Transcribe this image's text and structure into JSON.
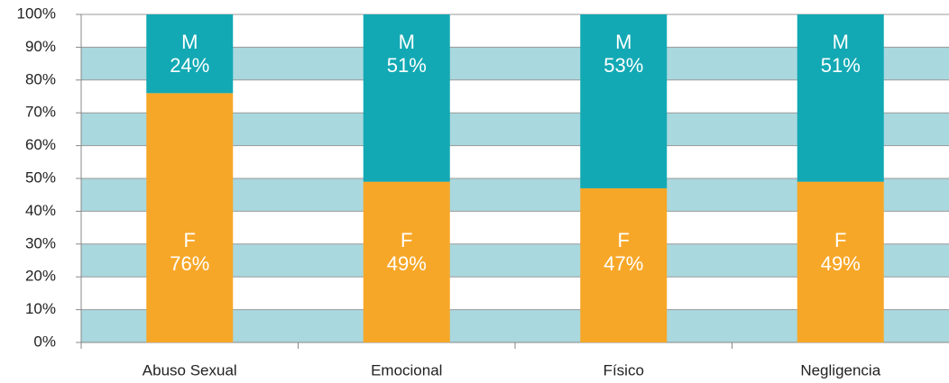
{
  "chart_data": {
    "type": "stacked_bar",
    "categories": [
      "Abuso Sexual",
      "Emocional",
      "Físico",
      "Negligencia"
    ],
    "series": [
      {
        "name": "F",
        "color": "#f7a728",
        "values": [
          76,
          49,
          47,
          49
        ],
        "value_labels": [
          "76%",
          "49%",
          "47%",
          "49%"
        ]
      },
      {
        "name": "M",
        "color": "#12a9b4",
        "values": [
          24,
          51,
          53,
          51
        ],
        "value_labels": [
          "24%",
          "51%",
          "53%",
          "51%"
        ]
      }
    ],
    "ylim": [
      0,
      100
    ],
    "yticks": [
      {
        "value": 0,
        "label": "0%"
      },
      {
        "value": 10,
        "label": "10%"
      },
      {
        "value": 20,
        "label": "20%"
      },
      {
        "value": 30,
        "label": "30%"
      },
      {
        "value": 40,
        "label": "40%"
      },
      {
        "value": 50,
        "label": "50%"
      },
      {
        "value": 60,
        "label": "60%"
      },
      {
        "value": 70,
        "label": "70%"
      },
      {
        "value": 80,
        "label": "80%"
      },
      {
        "value": 90,
        "label": "90%"
      },
      {
        "value": 100,
        "label": "100%"
      }
    ],
    "grid": true
  }
}
